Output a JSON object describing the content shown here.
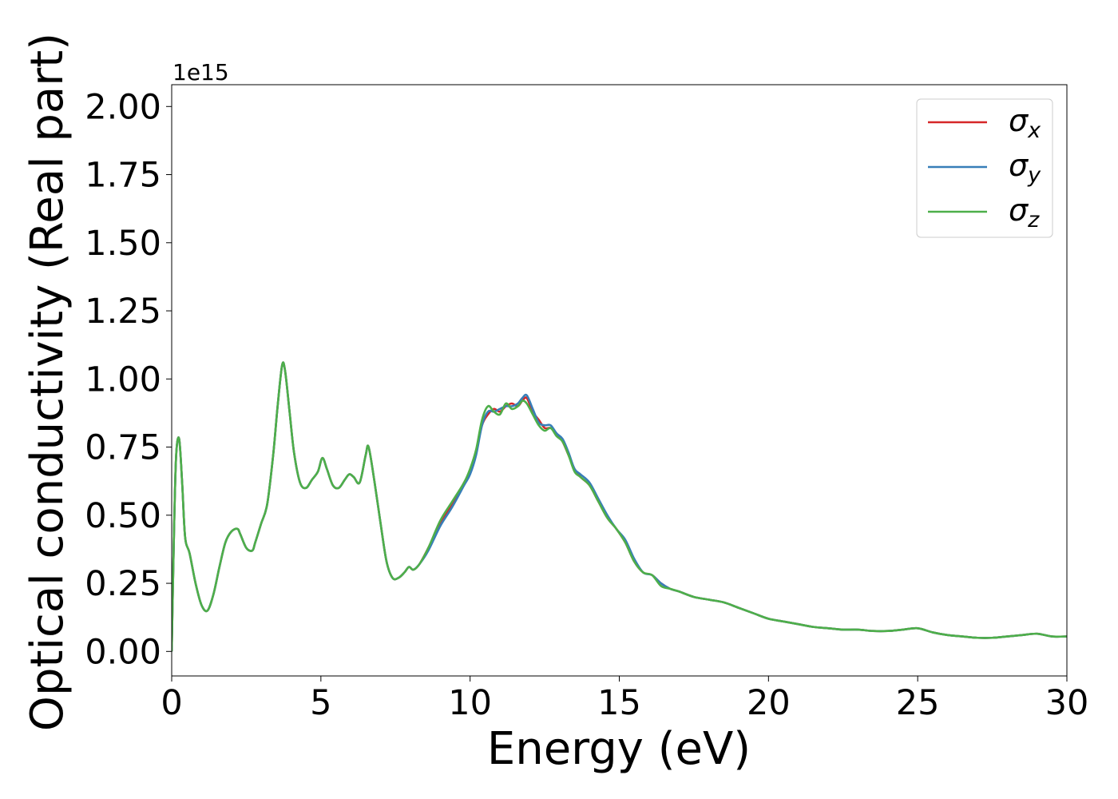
{
  "chart_data": {
    "type": "line",
    "xlabel": "Energy (eV)",
    "ylabel": "Optical conductivity (Real part)",
    "y_offset_label": "1e15",
    "y_scale": 1000000000000000.0,
    "xlim": [
      0,
      30
    ],
    "ylim": [
      -0.09,
      2.08
    ],
    "x_ticks": [
      0,
      5,
      10,
      15,
      20,
      25,
      30
    ],
    "x_tick_labels": [
      "0",
      "5",
      "10",
      "15",
      "20",
      "25",
      "30"
    ],
    "y_ticks": [
      0.0,
      0.25,
      0.5,
      0.75,
      1.0,
      1.25,
      1.5,
      1.75,
      2.0
    ],
    "y_tick_labels": [
      "0.00",
      "0.25",
      "0.50",
      "0.75",
      "1.00",
      "1.25",
      "1.50",
      "1.75",
      "2.00"
    ],
    "grid": false,
    "legend_position": "top-right",
    "series": [
      {
        "name": "σx",
        "symbol": "σ",
        "subscript": "x",
        "color": "#d62728",
        "x": [
          0,
          0.08,
          0.15,
          0.25,
          0.35,
          0.45,
          0.6,
          0.8,
          1.0,
          1.2,
          1.4,
          1.6,
          1.8,
          2.0,
          2.2,
          2.3,
          2.5,
          2.7,
          2.8,
          3.0,
          3.2,
          3.4,
          3.55,
          3.7,
          3.8,
          3.95,
          4.1,
          4.3,
          4.5,
          4.7,
          4.9,
          5.05,
          5.2,
          5.4,
          5.6,
          5.8,
          5.95,
          6.1,
          6.3,
          6.5,
          6.6,
          6.8,
          7.0,
          7.2,
          7.4,
          7.6,
          7.8,
          7.95,
          8.1,
          8.3,
          8.6,
          9.0,
          9.4,
          9.8,
          10.0,
          10.2,
          10.4,
          10.6,
          10.8,
          11.0,
          11.2,
          11.4,
          11.6,
          11.75,
          11.9,
          12.1,
          12.3,
          12.5,
          12.7,
          12.9,
          13.1,
          13.3,
          13.5,
          13.7,
          14.0,
          14.3,
          14.6,
          14.9,
          15.2,
          15.5,
          15.8,
          16.1,
          16.4,
          16.7,
          17.0,
          17.5,
          18.0,
          18.5,
          19.0,
          19.5,
          20.0,
          20.5,
          21.0,
          21.5,
          22.0,
          22.5,
          23.0,
          23.5,
          24.0,
          24.5,
          25.0,
          25.5,
          26.0,
          26.5,
          27.0,
          27.5,
          28.0,
          28.5,
          29.0,
          29.5,
          30.0
        ],
        "values": [
          0.0,
          0.45,
          0.72,
          0.78,
          0.62,
          0.42,
          0.36,
          0.25,
          0.17,
          0.15,
          0.21,
          0.31,
          0.4,
          0.44,
          0.45,
          0.43,
          0.38,
          0.37,
          0.4,
          0.47,
          0.54,
          0.72,
          0.9,
          1.05,
          1.03,
          0.88,
          0.73,
          0.62,
          0.6,
          0.63,
          0.66,
          0.71,
          0.67,
          0.61,
          0.6,
          0.63,
          0.65,
          0.64,
          0.62,
          0.72,
          0.75,
          0.62,
          0.47,
          0.33,
          0.27,
          0.27,
          0.29,
          0.31,
          0.3,
          0.32,
          0.38,
          0.47,
          0.54,
          0.62,
          0.66,
          0.73,
          0.83,
          0.87,
          0.89,
          0.88,
          0.9,
          0.91,
          0.9,
          0.92,
          0.93,
          0.88,
          0.85,
          0.82,
          0.82,
          0.8,
          0.77,
          0.72,
          0.67,
          0.64,
          0.61,
          0.55,
          0.49,
          0.45,
          0.4,
          0.33,
          0.29,
          0.28,
          0.25,
          0.23,
          0.22,
          0.2,
          0.19,
          0.18,
          0.16,
          0.14,
          0.12,
          0.11,
          0.1,
          0.09,
          0.085,
          0.08,
          0.08,
          0.075,
          0.075,
          0.08,
          0.085,
          0.07,
          0.06,
          0.055,
          0.05,
          0.05,
          0.055,
          0.06,
          0.065,
          0.055,
          0.055
        ]
      },
      {
        "name": "σy",
        "symbol": "σ",
        "subscript": "y",
        "color": "#377eb8",
        "x": [
          0,
          0.08,
          0.15,
          0.25,
          0.35,
          0.45,
          0.6,
          0.8,
          1.0,
          1.2,
          1.4,
          1.6,
          1.8,
          2.0,
          2.2,
          2.3,
          2.5,
          2.7,
          2.8,
          3.0,
          3.2,
          3.4,
          3.55,
          3.7,
          3.8,
          3.95,
          4.1,
          4.3,
          4.5,
          4.7,
          4.9,
          5.05,
          5.2,
          5.4,
          5.6,
          5.8,
          5.95,
          6.1,
          6.3,
          6.5,
          6.6,
          6.8,
          7.0,
          7.2,
          7.4,
          7.6,
          7.8,
          7.95,
          8.1,
          8.3,
          8.6,
          9.0,
          9.4,
          9.8,
          10.0,
          10.2,
          10.4,
          10.6,
          10.8,
          11.0,
          11.2,
          11.4,
          11.6,
          11.75,
          11.9,
          12.1,
          12.3,
          12.5,
          12.7,
          12.9,
          13.1,
          13.3,
          13.5,
          13.7,
          14.0,
          14.3,
          14.6,
          14.9,
          15.2,
          15.5,
          15.8,
          16.1,
          16.4,
          16.7,
          17.0,
          17.5,
          18.0,
          18.5,
          19.0,
          19.5,
          20.0,
          20.5,
          21.0,
          21.5,
          22.0,
          22.5,
          23.0,
          23.5,
          24.0,
          24.5,
          25.0,
          25.5,
          26.0,
          26.5,
          27.0,
          27.5,
          28.0,
          28.5,
          29.0,
          29.5,
          30.0
        ],
        "values": [
          0.0,
          0.45,
          0.72,
          0.78,
          0.62,
          0.42,
          0.36,
          0.25,
          0.17,
          0.15,
          0.21,
          0.31,
          0.4,
          0.44,
          0.45,
          0.43,
          0.38,
          0.37,
          0.4,
          0.47,
          0.54,
          0.72,
          0.9,
          1.05,
          1.03,
          0.88,
          0.73,
          0.62,
          0.6,
          0.63,
          0.66,
          0.71,
          0.67,
          0.61,
          0.6,
          0.63,
          0.65,
          0.64,
          0.62,
          0.72,
          0.75,
          0.62,
          0.47,
          0.33,
          0.27,
          0.27,
          0.29,
          0.31,
          0.3,
          0.32,
          0.37,
          0.46,
          0.53,
          0.61,
          0.65,
          0.72,
          0.83,
          0.88,
          0.88,
          0.89,
          0.9,
          0.9,
          0.91,
          0.93,
          0.94,
          0.89,
          0.84,
          0.83,
          0.83,
          0.8,
          0.78,
          0.73,
          0.67,
          0.65,
          0.62,
          0.56,
          0.5,
          0.45,
          0.41,
          0.34,
          0.29,
          0.28,
          0.25,
          0.23,
          0.22,
          0.2,
          0.19,
          0.18,
          0.16,
          0.14,
          0.12,
          0.11,
          0.1,
          0.09,
          0.085,
          0.08,
          0.08,
          0.075,
          0.075,
          0.08,
          0.085,
          0.07,
          0.06,
          0.055,
          0.05,
          0.05,
          0.055,
          0.06,
          0.065,
          0.055,
          0.055
        ]
      },
      {
        "name": "σz",
        "symbol": "σ",
        "subscript": "z",
        "color": "#4daf4a",
        "x": [
          0,
          0.08,
          0.15,
          0.25,
          0.35,
          0.45,
          0.6,
          0.8,
          1.0,
          1.2,
          1.4,
          1.6,
          1.8,
          2.0,
          2.2,
          2.3,
          2.5,
          2.7,
          2.8,
          3.0,
          3.2,
          3.4,
          3.55,
          3.7,
          3.8,
          3.95,
          4.1,
          4.3,
          4.5,
          4.7,
          4.9,
          5.05,
          5.2,
          5.4,
          5.6,
          5.8,
          5.95,
          6.1,
          6.3,
          6.5,
          6.6,
          6.8,
          7.0,
          7.2,
          7.4,
          7.6,
          7.8,
          7.95,
          8.1,
          8.3,
          8.6,
          9.0,
          9.4,
          9.8,
          10.0,
          10.2,
          10.4,
          10.6,
          10.8,
          11.0,
          11.2,
          11.4,
          11.6,
          11.75,
          11.9,
          12.1,
          12.3,
          12.5,
          12.7,
          12.9,
          13.1,
          13.3,
          13.5,
          13.7,
          14.0,
          14.3,
          14.6,
          14.9,
          15.2,
          15.5,
          15.8,
          16.1,
          16.4,
          16.7,
          17.0,
          17.5,
          18.0,
          18.5,
          19.0,
          19.5,
          20.0,
          20.5,
          21.0,
          21.5,
          22.0,
          22.5,
          23.0,
          23.5,
          24.0,
          24.5,
          25.0,
          25.5,
          26.0,
          26.5,
          27.0,
          27.5,
          28.0,
          28.5,
          29.0,
          29.5,
          30.0
        ],
        "values": [
          0.0,
          0.45,
          0.72,
          0.78,
          0.62,
          0.42,
          0.36,
          0.25,
          0.17,
          0.15,
          0.21,
          0.31,
          0.4,
          0.44,
          0.45,
          0.43,
          0.38,
          0.37,
          0.4,
          0.47,
          0.54,
          0.72,
          0.9,
          1.05,
          1.03,
          0.88,
          0.73,
          0.62,
          0.6,
          0.63,
          0.66,
          0.71,
          0.67,
          0.61,
          0.6,
          0.63,
          0.65,
          0.64,
          0.62,
          0.72,
          0.75,
          0.62,
          0.47,
          0.33,
          0.27,
          0.27,
          0.29,
          0.31,
          0.3,
          0.32,
          0.38,
          0.48,
          0.55,
          0.62,
          0.67,
          0.74,
          0.85,
          0.9,
          0.88,
          0.87,
          0.91,
          0.89,
          0.9,
          0.92,
          0.91,
          0.87,
          0.83,
          0.81,
          0.82,
          0.79,
          0.77,
          0.72,
          0.66,
          0.64,
          0.61,
          0.55,
          0.49,
          0.45,
          0.4,
          0.33,
          0.29,
          0.28,
          0.24,
          0.23,
          0.22,
          0.2,
          0.19,
          0.18,
          0.16,
          0.14,
          0.12,
          0.11,
          0.1,
          0.09,
          0.085,
          0.08,
          0.08,
          0.075,
          0.075,
          0.08,
          0.085,
          0.07,
          0.06,
          0.055,
          0.05,
          0.05,
          0.055,
          0.06,
          0.065,
          0.055,
          0.055
        ]
      }
    ]
  }
}
